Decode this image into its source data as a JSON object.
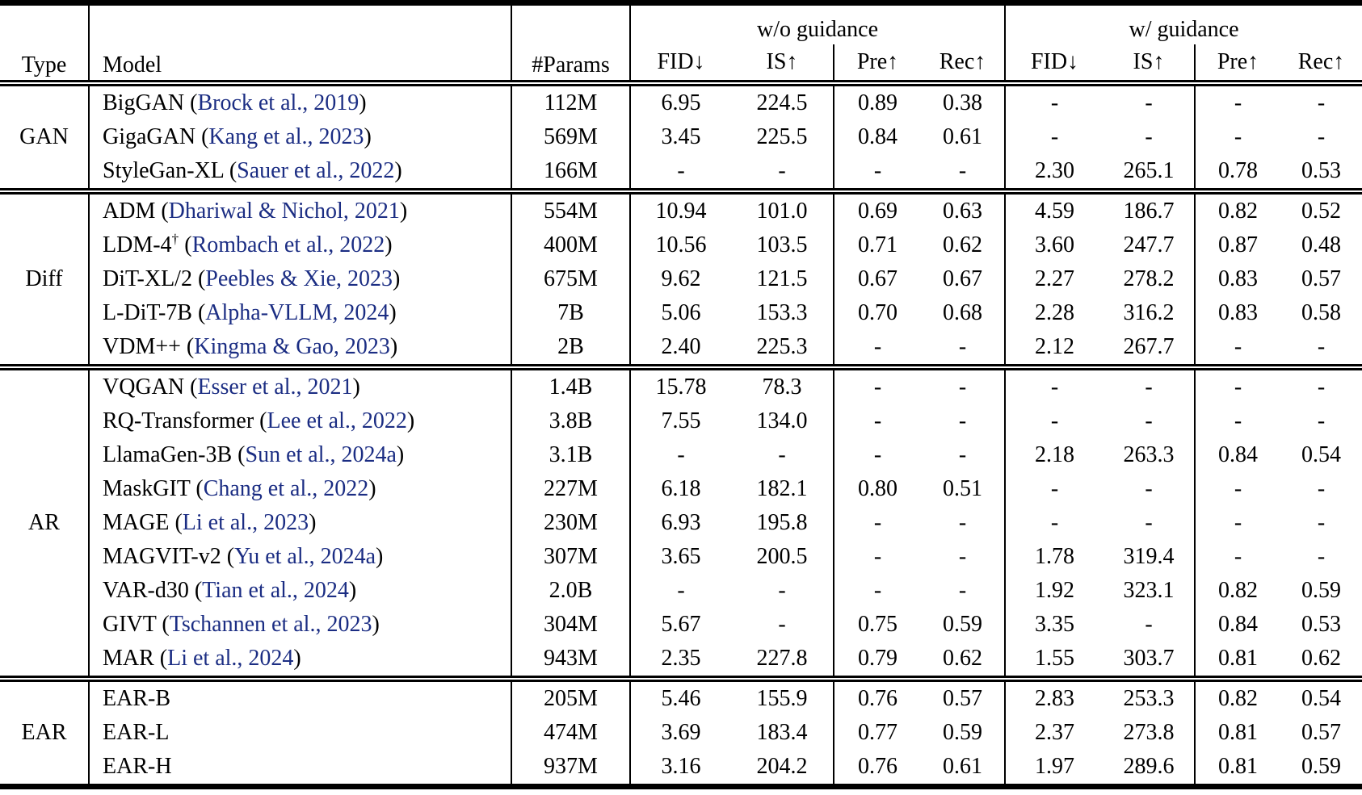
{
  "colors": {
    "text": "#000000",
    "citation_blue": "#1b2d83",
    "background": "#ffffff",
    "rule_black": "#000000"
  },
  "table": {
    "headers": {
      "type": "Type",
      "model": "Model",
      "params": "#Params",
      "group_without": "w/o guidance",
      "group_with": "w/ guidance",
      "metrics": [
        "FID↓",
        "IS↑",
        "Pre↑",
        "Rec↑"
      ]
    },
    "sections": [
      {
        "type": "GAN",
        "rows": [
          {
            "model": "BigGAN",
            "cite": "Brock et al., 2019",
            "params": "112M",
            "wo": [
              "6.95",
              "224.5",
              "0.89",
              "0.38"
            ],
            "w": [
              "-",
              "-",
              "-",
              "-"
            ]
          },
          {
            "model": "GigaGAN",
            "cite": "Kang et al., 2023",
            "params": "569M",
            "wo": [
              "3.45",
              "225.5",
              "0.84",
              "0.61"
            ],
            "w": [
              "-",
              "-",
              "-",
              "-"
            ]
          },
          {
            "model": "StyleGan-XL",
            "cite": "Sauer et al., 2022",
            "params": "166M",
            "wo": [
              "-",
              "-",
              "-",
              "-"
            ],
            "w": [
              "2.30",
              "265.1",
              "0.78",
              "0.53"
            ]
          }
        ]
      },
      {
        "type": "Diff",
        "rows": [
          {
            "model": "ADM",
            "cite": "Dhariwal & Nichol, 2021",
            "params": "554M",
            "wo": [
              "10.94",
              "101.0",
              "0.69",
              "0.63"
            ],
            "w": [
              "4.59",
              "186.7",
              "0.82",
              "0.52"
            ]
          },
          {
            "model": "LDM-4",
            "sup": "†",
            "cite": "Rombach et al., 2022",
            "params": "400M",
            "wo": [
              "10.56",
              "103.5",
              "0.71",
              "0.62"
            ],
            "w": [
              "3.60",
              "247.7",
              "0.87",
              "0.48"
            ]
          },
          {
            "model": "DiT-XL/2",
            "cite": "Peebles & Xie, 2023",
            "params": "675M",
            "wo": [
              "9.62",
              "121.5",
              "0.67",
              "0.67"
            ],
            "w": [
              "2.27",
              "278.2",
              "0.83",
              "0.57"
            ]
          },
          {
            "model": "L-DiT-7B",
            "cite": "Alpha-VLLM, 2024",
            "params": "7B",
            "wo": [
              "5.06",
              "153.3",
              "0.70",
              "0.68"
            ],
            "w": [
              "2.28",
              "316.2",
              "0.83",
              "0.58"
            ]
          },
          {
            "model": "VDM++",
            "cite": "Kingma & Gao, 2023",
            "params": "2B",
            "wo": [
              "2.40",
              "225.3",
              "-",
              "-"
            ],
            "w": [
              "2.12",
              "267.7",
              "-",
              "-"
            ]
          }
        ]
      },
      {
        "type": "AR",
        "rows": [
          {
            "model": "VQGAN",
            "cite": "Esser et al., 2021",
            "params": "1.4B",
            "wo": [
              "15.78",
              "78.3",
              "-",
              "-"
            ],
            "w": [
              "-",
              "-",
              "-",
              "-"
            ]
          },
          {
            "model": "RQ-Transformer",
            "cite": "Lee et al., 2022",
            "params": "3.8B",
            "wo": [
              "7.55",
              "134.0",
              "-",
              "-"
            ],
            "w": [
              "-",
              "-",
              "-",
              "-"
            ]
          },
          {
            "model": "LlamaGen-3B",
            "cite": "Sun et al., 2024a",
            "params": "3.1B",
            "wo": [
              "-",
              "-",
              "-",
              "-"
            ],
            "w": [
              "2.18",
              "263.3",
              "0.84",
              "0.54"
            ]
          },
          {
            "model": "MaskGIT",
            "cite": "Chang et al., 2022",
            "params": "227M",
            "wo": [
              "6.18",
              "182.1",
              "0.80",
              "0.51"
            ],
            "w": [
              "-",
              "-",
              "-",
              "-"
            ]
          },
          {
            "model": "MAGE",
            "cite": "Li et al., 2023",
            "params": "230M",
            "wo": [
              "6.93",
              "195.8",
              "-",
              "-"
            ],
            "w": [
              "-",
              "-",
              "-",
              "-"
            ]
          },
          {
            "model": "MAGVIT-v2",
            "cite": "Yu et al., 2024a",
            "params": "307M",
            "wo": [
              "3.65",
              "200.5",
              "-",
              "-"
            ],
            "w": [
              "1.78",
              "319.4",
              "-",
              "-"
            ]
          },
          {
            "model": "VAR-d30",
            "cite": "Tian et al., 2024",
            "params": "2.0B",
            "wo": [
              "-",
              "-",
              "-",
              "-"
            ],
            "w": [
              "1.92",
              "323.1",
              "0.82",
              "0.59"
            ]
          },
          {
            "model": "GIVT",
            "cite": "Tschannen et al., 2023",
            "params": "304M",
            "wo": [
              "5.67",
              "-",
              "0.75",
              "0.59"
            ],
            "w": [
              "3.35",
              "-",
              "0.84",
              "0.53"
            ]
          },
          {
            "model": "MAR",
            "cite": "Li et al., 2024",
            "params": "943M",
            "wo": [
              "2.35",
              "227.8",
              "0.79",
              "0.62"
            ],
            "w": [
              "1.55",
              "303.7",
              "0.81",
              "0.62"
            ]
          }
        ]
      },
      {
        "type": "EAR",
        "rows": [
          {
            "model": "EAR-B",
            "params": "205M",
            "wo": [
              "5.46",
              "155.9",
              "0.76",
              "0.57"
            ],
            "w": [
              "2.83",
              "253.3",
              "0.82",
              "0.54"
            ]
          },
          {
            "model": "EAR-L",
            "params": "474M",
            "wo": [
              "3.69",
              "183.4",
              "0.77",
              "0.59"
            ],
            "w": [
              "2.37",
              "273.8",
              "0.81",
              "0.57"
            ]
          },
          {
            "model": "EAR-H",
            "params": "937M",
            "wo": [
              "3.16",
              "204.2",
              "0.76",
              "0.61"
            ],
            "w": [
              "1.97",
              "289.6",
              "0.81",
              "0.59"
            ]
          }
        ]
      }
    ]
  }
}
